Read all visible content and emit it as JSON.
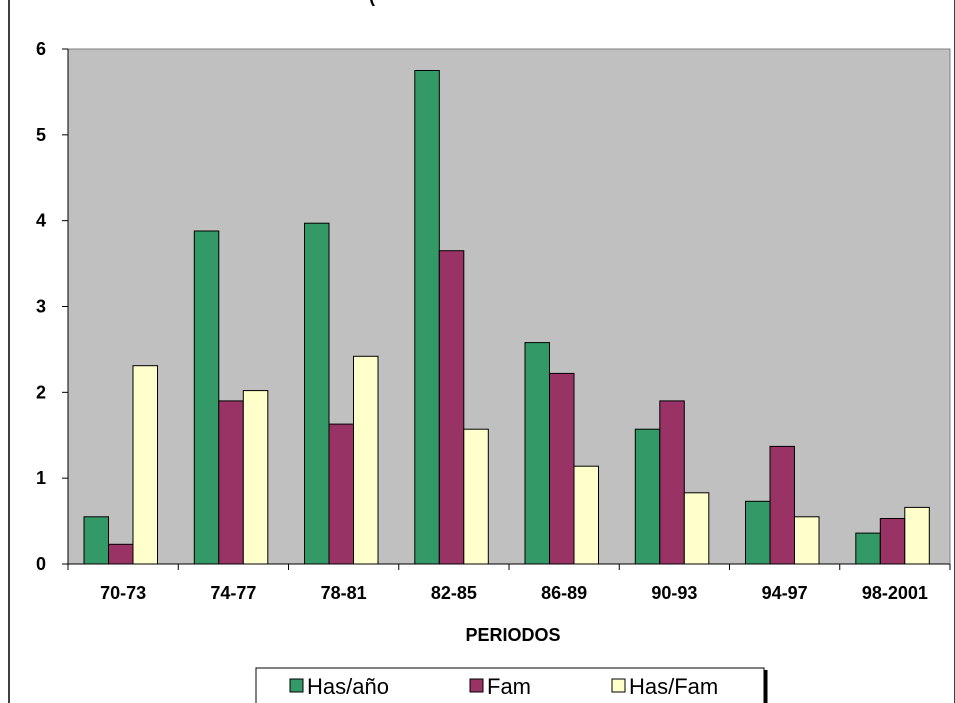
{
  "chart_data": {
    "type": "bar",
    "title": "(",
    "xlabel": "PERIODOS",
    "ylabel": "",
    "ylim": [
      0,
      6
    ],
    "y_ticks": [
      0,
      1,
      2,
      3,
      4,
      5,
      6
    ],
    "grid": false,
    "plot_background": "#c0c0c0",
    "legend_position": "bottom",
    "categories": [
      "70-73",
      "74-77",
      "78-81",
      "82-85",
      "86-89",
      "90-93",
      "94-97",
      "98-2001"
    ],
    "series": [
      {
        "name": "Has/año",
        "color": "#339966",
        "values": [
          0.55,
          3.88,
          3.97,
          5.75,
          2.58,
          1.57,
          0.73,
          0.36
        ]
      },
      {
        "name": "Fam",
        "color": "#993366",
        "values": [
          0.23,
          1.9,
          1.63,
          3.65,
          2.22,
          1.9,
          1.37,
          0.53
        ]
      },
      {
        "name": "Has/Fam",
        "color": "#ffffcc",
        "values": [
          2.31,
          2.02,
          2.42,
          1.57,
          1.14,
          0.83,
          0.55,
          0.66
        ]
      }
    ]
  }
}
